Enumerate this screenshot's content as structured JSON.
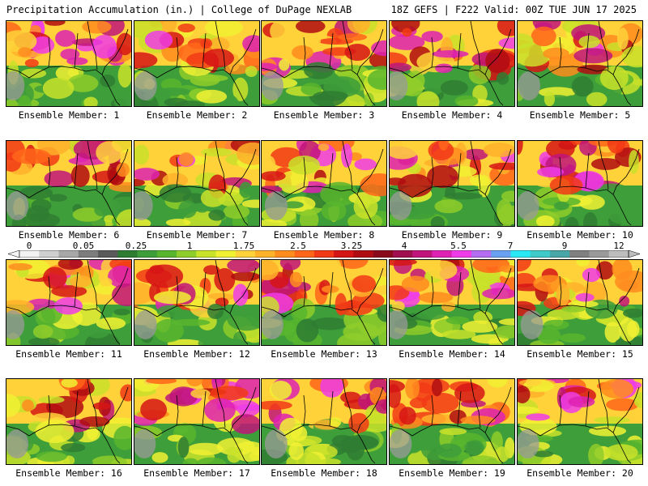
{
  "header": {
    "title_left": "Precipitation Accumulation (in.) | College of DuPage NEXLAB",
    "title_right": "18Z GEFS | F222 Valid: 00Z TUE JUN 17 2025"
  },
  "colorbar": {
    "labels": [
      "0",
      "0.05",
      "0.25",
      "1",
      "1.75",
      "2.5",
      "3.25",
      "4",
      "5.5",
      "7",
      "9",
      "12"
    ],
    "colors": [
      "#f2f2f2",
      "#cfcfcf",
      "#a8a8a8",
      "#7d7d7d",
      "#5a5a5a",
      "#2f7d32",
      "#3e9e3a",
      "#58b52e",
      "#8fcd2a",
      "#c9e22a",
      "#f1f133",
      "#ffd23a",
      "#ffb22a",
      "#ff8c1e",
      "#ff661a",
      "#f23a16",
      "#d61515",
      "#b00d12",
      "#8a0a1c",
      "#a0104e",
      "#c0157a",
      "#de22b3",
      "#f03ce8",
      "#b46cf0",
      "#6aa0f0",
      "#28e8f4",
      "#3fc9c9",
      "#49a7a7",
      "#808080",
      "#9a9a9a",
      "#bdbdbd"
    ]
  },
  "members": [
    {
      "caption": "Ensemble Member: 1"
    },
    {
      "caption": "Ensemble Member: 2"
    },
    {
      "caption": "Ensemble Member: 3"
    },
    {
      "caption": "Ensemble Member: 4"
    },
    {
      "caption": "Ensemble Member: 5"
    },
    {
      "caption": "Ensemble Member: 6"
    },
    {
      "caption": "Ensemble Member: 7"
    },
    {
      "caption": "Ensemble Member: 8"
    },
    {
      "caption": "Ensemble Member: 9"
    },
    {
      "caption": "Ensemble Member: 10"
    },
    {
      "caption": "Ensemble Member: 11"
    },
    {
      "caption": "Ensemble Member: 12"
    },
    {
      "caption": "Ensemble Member: 13"
    },
    {
      "caption": "Ensemble Member: 14"
    },
    {
      "caption": "Ensemble Member: 15"
    },
    {
      "caption": "Ensemble Member: 16"
    },
    {
      "caption": "Ensemble Member: 17"
    },
    {
      "caption": "Ensemble Member: 18"
    },
    {
      "caption": "Ensemble Member: 19"
    },
    {
      "caption": "Ensemble Member: 20"
    }
  ]
}
